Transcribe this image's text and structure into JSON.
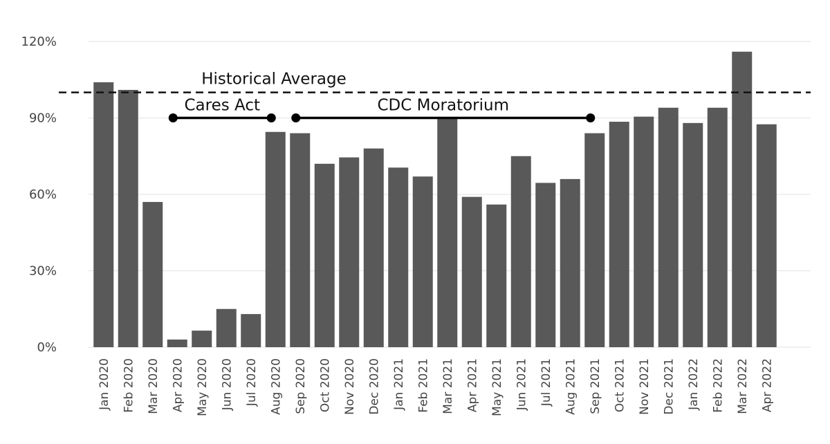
{
  "chart_data": {
    "type": "bar",
    "title": "",
    "xlabel": "",
    "ylabel": "",
    "ylim": [
      0,
      120
    ],
    "grid": true,
    "yticks": [
      0,
      30,
      60,
      90,
      120
    ],
    "ytick_labels": [
      "0%",
      "30%",
      "60%",
      "90%",
      "120%"
    ],
    "bar_color": "#595959",
    "categories": [
      "Jan 2020",
      "Feb 2020",
      "Mar 2020",
      "Apr 2020",
      "May 2020",
      "Jun 2020",
      "Jul 2020",
      "Aug 2020",
      "Sep 2020",
      "Oct 2020",
      "Nov 2020",
      "Dec 2020",
      "Jan 2021",
      "Feb 2021",
      "Mar 2021",
      "Apr 2021",
      "May 2021",
      "Jun 2021",
      "Jul 2021",
      "Aug 2021",
      "Sep 2021",
      "Oct 2021",
      "Nov 2021",
      "Dec 2021",
      "Jan 2022",
      "Feb 2022",
      "Mar 2022",
      "Apr 2022"
    ],
    "values": [
      104,
      101,
      57,
      3,
      6.5,
      15,
      13,
      84.5,
      84,
      72,
      74.5,
      78,
      70.5,
      67,
      90,
      59,
      56,
      75,
      64.5,
      66,
      84,
      88.5,
      90.5,
      94,
      88,
      94,
      116,
      87.5
    ],
    "reference_line": {
      "label": "Historical Average",
      "value": 100,
      "style": "dashed"
    },
    "annotations": [
      {
        "label": "Cares Act",
        "start": "Apr 2020",
        "end": "Aug 2020",
        "value": 90
      },
      {
        "label": "CDC Moratorium",
        "start": "Sep 2020",
        "end": "Sep 2021",
        "value": 90
      }
    ]
  }
}
